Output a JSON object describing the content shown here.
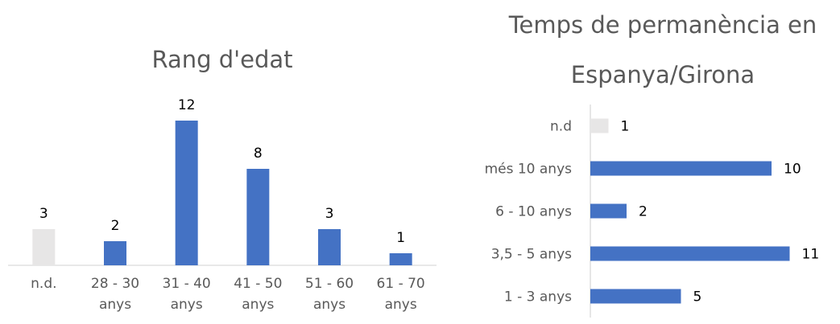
{
  "chart_data": [
    {
      "type": "bar",
      "orientation": "vertical",
      "title": "Rang d'edat",
      "categories": [
        [
          "n.d."
        ],
        [
          "28 - 30",
          "anys"
        ],
        [
          "31 - 40",
          "anys"
        ],
        [
          "41 - 50",
          "anys"
        ],
        [
          "51 - 60",
          "anys"
        ],
        [
          "61 - 70",
          "anys"
        ]
      ],
      "values": [
        3,
        2,
        12,
        8,
        3,
        1
      ],
      "bar_colors": [
        "#e7e6e6",
        "#4472c4",
        "#4472c4",
        "#4472c4",
        "#4472c4",
        "#4472c4"
      ],
      "ylim": [
        0,
        13
      ],
      "grid": false,
      "legend": "none"
    },
    {
      "type": "bar",
      "orientation": "horizontal",
      "title": [
        "Temps de permanència en",
        "Espanya/Girona"
      ],
      "categories": [
        "n.d",
        "més 10 anys",
        "6 - 10 anys",
        "3,5 - 5 anys",
        "1 - 3 anys"
      ],
      "values": [
        1,
        10,
        2,
        11,
        5
      ],
      "bar_colors": [
        "#e7e6e6",
        "#4472c4",
        "#4472c4",
        "#4472c4",
        "#4472c4"
      ],
      "xlim": [
        0,
        12
      ],
      "grid": false,
      "legend": "none"
    }
  ]
}
